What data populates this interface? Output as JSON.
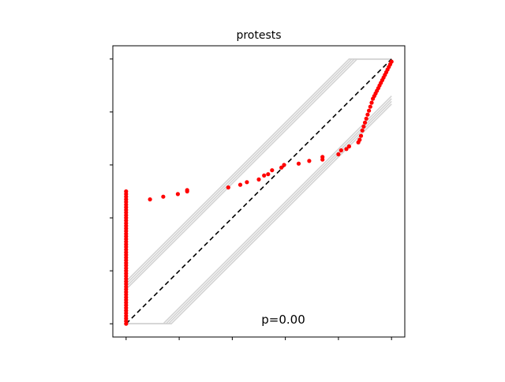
{
  "chart_data": {
    "type": "scatter",
    "title": "protests",
    "xlabel": "",
    "ylabel": "",
    "xlim": [
      -0.05,
      1.05
    ],
    "ylim": [
      -0.05,
      1.05
    ],
    "x_ticks": [
      0,
      0.2,
      0.4,
      0.6,
      0.8,
      1.0
    ],
    "y_ticks": [
      0,
      0.2,
      0.4,
      0.6,
      0.8,
      1.0
    ],
    "tick_labels_visible": false,
    "grid": false,
    "annotation": "p=0.00",
    "reference_line": {
      "x": [
        0,
        1
      ],
      "y": [
        0,
        1
      ],
      "style": "dashed",
      "color": "#000000"
    },
    "envelope_color": "#d3d3d3",
    "point_color": "#ff0000",
    "envelope_lines": [
      {
        "x": [
          0,
          0.84,
          1.0
        ],
        "y": [
          0.16,
          1.0,
          1.0
        ]
      },
      {
        "x": [
          0,
          0.85,
          1.0
        ],
        "y": [
          0.15,
          1.0,
          1.0
        ]
      },
      {
        "x": [
          0,
          0.86,
          1.0
        ],
        "y": [
          0.14,
          1.0,
          1.0
        ]
      },
      {
        "x": [
          0,
          0.87,
          1.0
        ],
        "y": [
          0.13,
          1.0,
          1.0
        ]
      },
      {
        "x": [
          0,
          0.14,
          1.0
        ],
        "y": [
          0,
          0,
          0.86
        ]
      },
      {
        "x": [
          0,
          0.15,
          1.0
        ],
        "y": [
          0,
          0,
          0.85
        ]
      },
      {
        "x": [
          0,
          0.16,
          1.0
        ],
        "y": [
          0,
          0,
          0.84
        ]
      },
      {
        "x": [
          0,
          0.17,
          1.0
        ],
        "y": [
          0,
          0,
          0.83
        ]
      }
    ],
    "points": {
      "x": [
        0,
        0,
        0,
        0,
        0,
        0,
        0,
        0,
        0,
        0,
        0,
        0,
        0,
        0,
        0,
        0,
        0,
        0,
        0,
        0,
        0,
        0,
        0,
        0,
        0,
        0,
        0,
        0,
        0,
        0,
        0,
        0,
        0,
        0,
        0,
        0,
        0,
        0,
        0,
        0,
        0,
        0,
        0,
        0,
        0,
        0,
        0,
        0,
        0,
        0,
        0,
        0.09,
        0.14,
        0.195,
        0.23,
        0.23,
        0.385,
        0.43,
        0.455,
        0.5,
        0.52,
        0.535,
        0.55,
        0.585,
        0.595,
        0.65,
        0.69,
        0.74,
        0.74,
        0.8,
        0.81,
        0.83,
        0.84,
        0.875,
        0.88,
        0.885,
        0.89,
        0.895,
        0.9,
        0.905,
        0.91,
        0.915,
        0.92,
        0.925,
        0.93,
        0.935,
        0.94,
        0.945,
        0.95,
        0.955,
        0.96,
        0.965,
        0.97,
        0.975,
        0.98,
        0.985,
        0.99,
        0.995,
        1.0
      ],
      "y": [
        0,
        0.01,
        0.02,
        0.03,
        0.04,
        0.05,
        0.06,
        0.07,
        0.08,
        0.09,
        0.1,
        0.11,
        0.12,
        0.13,
        0.14,
        0.15,
        0.16,
        0.17,
        0.18,
        0.19,
        0.2,
        0.21,
        0.22,
        0.23,
        0.24,
        0.25,
        0.26,
        0.27,
        0.28,
        0.29,
        0.3,
        0.31,
        0.32,
        0.33,
        0.34,
        0.35,
        0.36,
        0.37,
        0.38,
        0.39,
        0.4,
        0.41,
        0.42,
        0.43,
        0.44,
        0.45,
        0.46,
        0.47,
        0.48,
        0.49,
        0.5,
        0.47,
        0.48,
        0.49,
        0.5,
        0.505,
        0.515,
        0.525,
        0.535,
        0.545,
        0.56,
        0.565,
        0.58,
        0.59,
        0.6,
        0.605,
        0.615,
        0.62,
        0.63,
        0.64,
        0.655,
        0.66,
        0.67,
        0.685,
        0.695,
        0.71,
        0.73,
        0.745,
        0.76,
        0.775,
        0.79,
        0.805,
        0.82,
        0.835,
        0.85,
        0.86,
        0.87,
        0.88,
        0.89,
        0.9,
        0.91,
        0.92,
        0.93,
        0.94,
        0.95,
        0.96,
        0.97,
        0.98,
        0.99
      ]
    }
  }
}
